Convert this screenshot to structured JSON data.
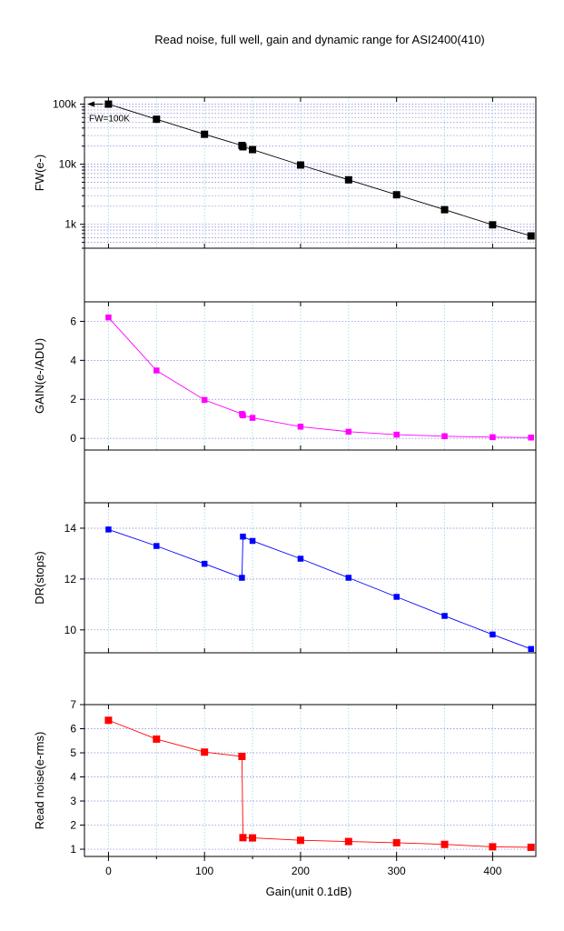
{
  "chart_data": [
    {
      "type": "line",
      "title": "Read noise, full well, gain and dynamic range for ASI2400(410)",
      "xlabel": "Gain(unit 0.1dB)",
      "ylabel": "FW(e-)",
      "scale": "log",
      "xlim": [
        -25,
        445
      ],
      "ylim": [
        400,
        130000
      ],
      "x_ticks": [
        0,
        100,
        200,
        300,
        400
      ],
      "y_ticks": [
        {
          "value": 1000,
          "label": "1k"
        },
        {
          "value": 10000,
          "label": "10k"
        },
        {
          "value": 100000,
          "label": "100k"
        }
      ],
      "grid": true,
      "color": "#000000",
      "annotation": "FW=100K",
      "series": [
        {
          "x": [
            0,
            50,
            100,
            139,
            140,
            150,
            200,
            250,
            300,
            350,
            400,
            440
          ],
          "y": [
            100000,
            56000,
            31500,
            20500,
            19500,
            17500,
            9700,
            5500,
            3100,
            1750,
            980,
            640
          ]
        }
      ]
    },
    {
      "type": "line",
      "xlabel": "Gain(unit 0.1dB)",
      "ylabel": "GAIN(e-/ADU)",
      "scale": "linear",
      "xlim": [
        -25,
        445
      ],
      "ylim": [
        -0.6,
        7
      ],
      "x_ticks": [
        0,
        100,
        200,
        300,
        400
      ],
      "y_ticks": [
        {
          "value": 0,
          "label": "0"
        },
        {
          "value": 2,
          "label": "2"
        },
        {
          "value": 4,
          "label": "4"
        },
        {
          "value": 6,
          "label": "6"
        }
      ],
      "grid": true,
      "color": "#ff00ff",
      "series": [
        {
          "x": [
            0,
            50,
            100,
            139,
            140,
            150,
            200,
            250,
            300,
            350,
            400,
            440
          ],
          "y": [
            6.2,
            3.48,
            1.97,
            1.25,
            1.18,
            1.05,
            0.6,
            0.34,
            0.19,
            0.11,
            0.06,
            0.04
          ]
        }
      ]
    },
    {
      "type": "line",
      "xlabel": "Gain(unit 0.1dB)",
      "ylabel": "DR(stops)",
      "scale": "linear",
      "xlim": [
        -25,
        445
      ],
      "ylim": [
        9.1,
        15
      ],
      "x_ticks": [
        0,
        100,
        200,
        300,
        400
      ],
      "y_ticks": [
        {
          "value": 10,
          "label": "10"
        },
        {
          "value": 12,
          "label": "12"
        },
        {
          "value": 14,
          "label": "14"
        }
      ],
      "grid": true,
      "color": "#0000ff",
      "series": [
        {
          "x": [
            0,
            50,
            100,
            139,
            140,
            150,
            200,
            250,
            300,
            350,
            400,
            440
          ],
          "y": [
            13.95,
            13.3,
            12.6,
            12.05,
            13.67,
            13.5,
            12.8,
            12.05,
            11.3,
            10.55,
            9.82,
            9.25
          ]
        }
      ]
    },
    {
      "type": "line",
      "xlabel": "Gain(unit 0.1dB)",
      "ylabel": "Read noise(e-rms)",
      "scale": "linear",
      "xlim": [
        -25,
        445
      ],
      "ylim": [
        0.7,
        7
      ],
      "x_ticks": [
        0,
        100,
        200,
        300,
        400
      ],
      "y_ticks": [
        {
          "value": 1,
          "label": "1"
        },
        {
          "value": 2,
          "label": "2"
        },
        {
          "value": 3,
          "label": "3"
        },
        {
          "value": 4,
          "label": "4"
        },
        {
          "value": 5,
          "label": "5"
        },
        {
          "value": 6,
          "label": "6"
        },
        {
          "value": 7,
          "label": "7"
        }
      ],
      "grid": true,
      "color": "#ff0000",
      "series": [
        {
          "x": [
            0,
            50,
            100,
            139,
            140,
            150,
            200,
            250,
            300,
            350,
            400,
            440
          ],
          "y": [
            6.35,
            5.57,
            5.03,
            4.85,
            1.48,
            1.47,
            1.37,
            1.32,
            1.27,
            1.2,
            1.1,
            1.08
          ]
        }
      ]
    }
  ]
}
